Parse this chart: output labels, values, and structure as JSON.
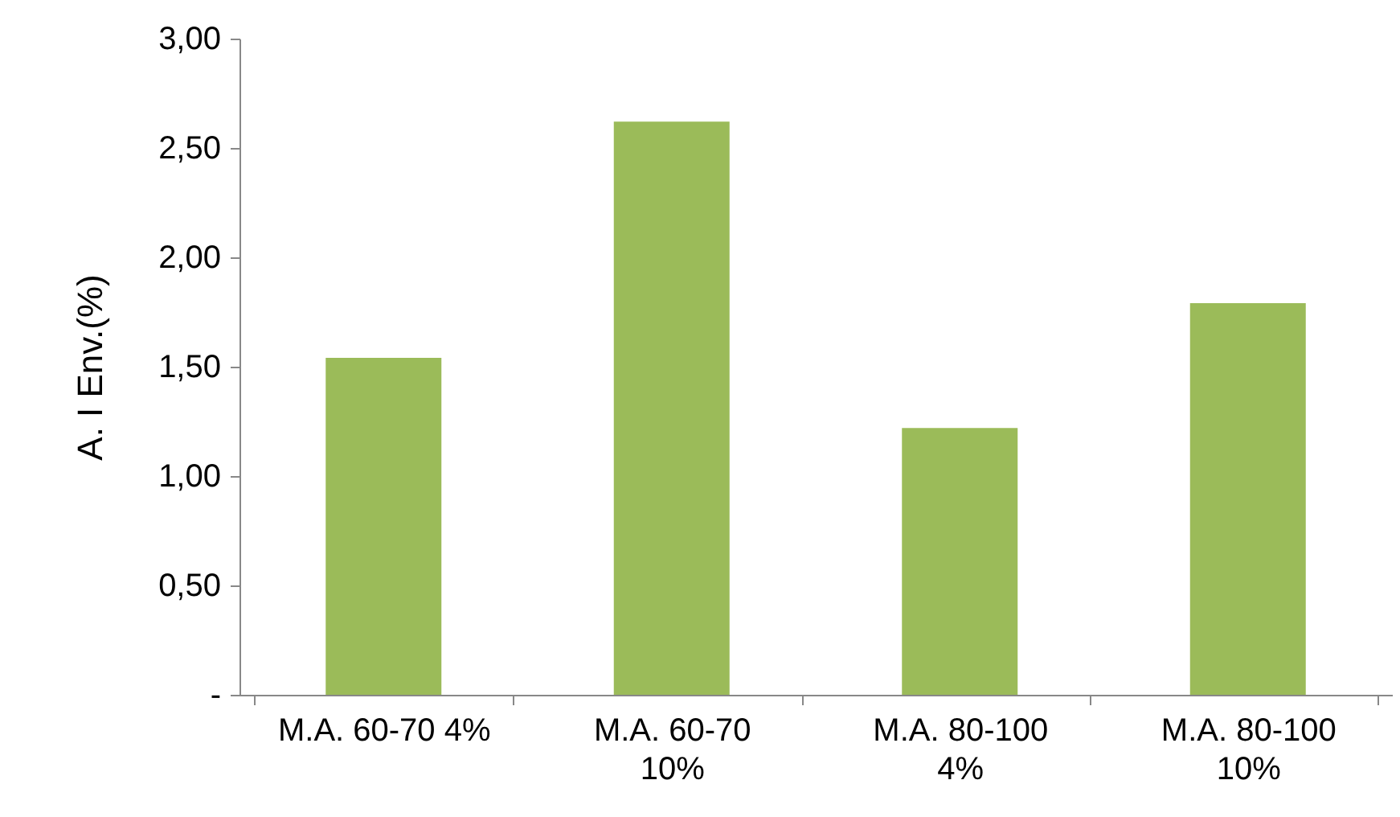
{
  "chart_data": {
    "type": "bar",
    "ylabel": "A. I Env.(%)",
    "categories": [
      "M.A. 60-70 4%",
      "M.A. 60-70 10%",
      "M.A. 80-100 4%",
      "M.A. 80-100 10%"
    ],
    "values": [
      1.54,
      2.62,
      1.22,
      1.79
    ],
    "color": "#9bbb59",
    "ylim": [
      0,
      3
    ],
    "yticks": [
      {
        "value": 0,
        "label": "-"
      },
      {
        "value": 0.5,
        "label": "0,50"
      },
      {
        "value": 1,
        "label": "1,00"
      },
      {
        "value": 1.5,
        "label": "1,50"
      },
      {
        "value": 2,
        "label": "2,00"
      },
      {
        "value": 2.5,
        "label": "2,50"
      },
      {
        "value": 3,
        "label": "3,00"
      }
    ],
    "grid": false
  }
}
